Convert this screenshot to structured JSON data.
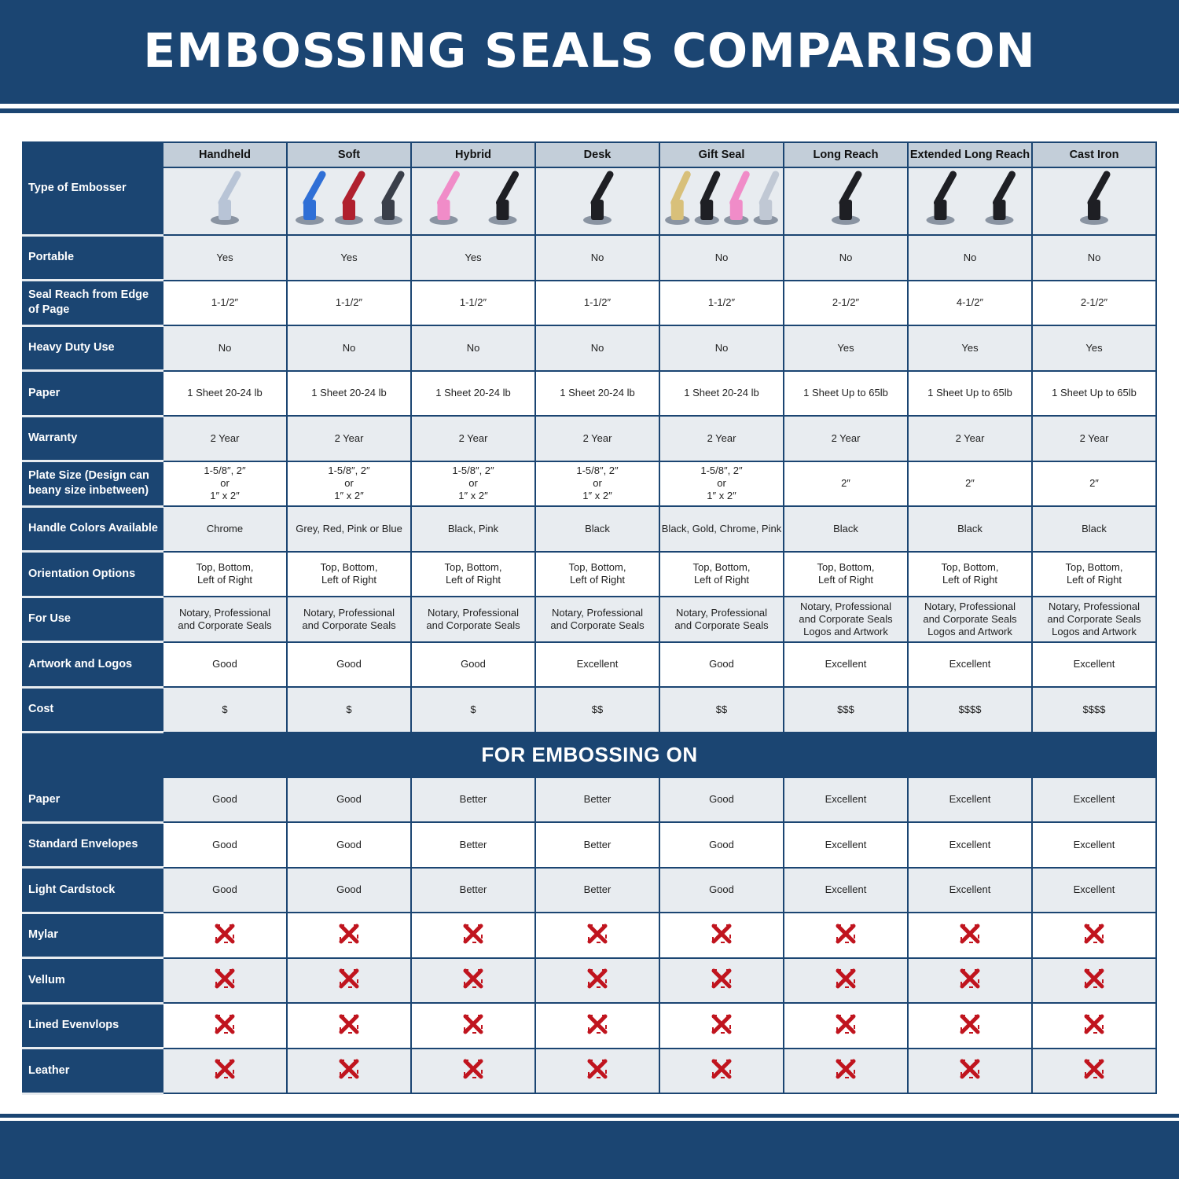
{
  "title": "EMBOSSING SEALS COMPARISON",
  "colors": {
    "brand": "#1b4572",
    "row_alt": "#e8ecf0",
    "header_cell": "#c3ced9",
    "cross": "#c0141e"
  },
  "type_label": "Type of Embosser",
  "columns": [
    {
      "name": "Handheld",
      "image": "chrome-handheld-embosser",
      "colors": [
        "#b8c4d6"
      ]
    },
    {
      "name": "Soft",
      "image": "soft-embossers-blue-red-grey",
      "colors": [
        "#2f6fd6",
        "#b0202e",
        "#3a3f4a"
      ]
    },
    {
      "name": "Hybrid",
      "image": "hybrid-embossers-pink-black",
      "colors": [
        "#f08cc8",
        "#1e1f24"
      ]
    },
    {
      "name": "Desk",
      "image": "desk-embosser-black",
      "colors": [
        "#1e1f24"
      ]
    },
    {
      "name": "Gift Seal",
      "image": "gift-seals-gold-black-pink-chrome",
      "colors": [
        "#d8c07a",
        "#1e1f24",
        "#f08cc8",
        "#c0c8d4"
      ]
    },
    {
      "name": "Long Reach",
      "image": "long-reach-embosser-black",
      "colors": [
        "#1e1f24"
      ]
    },
    {
      "name": "Extended Long Reach",
      "image": "extended-long-reach-embossers",
      "colors": [
        "#1e1f24",
        "#1e1f24"
      ]
    },
    {
      "name": "Cast Iron",
      "image": "cast-iron-embosser",
      "colors": [
        "#1e1f24"
      ]
    }
  ],
  "rows": [
    {
      "label": "Portable",
      "values": [
        "Yes",
        "Yes",
        "Yes",
        "No",
        "No",
        "No",
        "No",
        "No"
      ]
    },
    {
      "label": "Seal Reach from Edge of Page",
      "values": [
        "1-1/2″",
        "1-1/2″",
        "1-1/2″",
        "1-1/2″",
        "1-1/2″",
        "2-1/2″",
        "4-1/2″",
        "2-1/2″"
      ]
    },
    {
      "label": "Heavy Duty Use",
      "values": [
        "No",
        "No",
        "No",
        "No",
        "No",
        "Yes",
        "Yes",
        "Yes"
      ]
    },
    {
      "label": "Paper",
      "values": [
        "1 Sheet 20-24 lb",
        "1 Sheet 20-24 lb",
        "1 Sheet 20-24 lb",
        "1 Sheet 20-24 lb",
        "1 Sheet 20-24 lb",
        "1 Sheet Up to 65lb",
        "1 Sheet Up to 65lb",
        "1 Sheet Up to 65lb"
      ]
    },
    {
      "label": "Warranty",
      "values": [
        "2 Year",
        "2 Year",
        "2 Year",
        "2 Year",
        "2 Year",
        "2 Year",
        "2 Year",
        "2 Year"
      ]
    },
    {
      "label": "Plate Size (Design can beany size inbetween)",
      "values": [
        "1-5/8″, 2″\nor\n1″ x 2″",
        "1-5/8″, 2″\nor\n1″ x 2″",
        "1-5/8″, 2″\nor\n1″ x 2″",
        "1-5/8″, 2″\nor\n1″ x 2″",
        "1-5/8″, 2″\nor\n1″ x 2″",
        "2″",
        "2″",
        "2″"
      ]
    },
    {
      "label": "Handle Colors Available",
      "values": [
        "Chrome",
        "Grey, Red, Pink or Blue",
        "Black, Pink",
        "Black",
        "Black, Gold, Chrome, Pink",
        "Black",
        "Black",
        "Black"
      ]
    },
    {
      "label": "Orientation Options",
      "values": [
        "Top, Bottom,\nLeft of Right",
        "Top, Bottom,\nLeft of Right",
        "Top, Bottom,\nLeft of Right",
        "Top, Bottom,\nLeft of Right",
        "Top, Bottom,\nLeft of Right",
        "Top, Bottom,\nLeft of Right",
        "Top, Bottom,\nLeft of Right",
        "Top, Bottom,\nLeft of Right"
      ]
    },
    {
      "label": "For Use",
      "values": [
        "Notary, Professional\nand Corporate Seals",
        "Notary, Professional\nand Corporate Seals",
        "Notary, Professional\nand Corporate Seals",
        "Notary, Professional\nand Corporate Seals",
        "Notary, Professional\nand Corporate Seals",
        "Notary, Professional\nand Corporate Seals\nLogos and Artwork",
        "Notary, Professional\nand Corporate Seals\nLogos and Artwork",
        "Notary, Professional\nand Corporate Seals\nLogos and Artwork"
      ]
    },
    {
      "label": "Artwork and Logos",
      "values": [
        "Good",
        "Good",
        "Good",
        "Excellent",
        "Good",
        "Excellent",
        "Excellent",
        "Excellent"
      ]
    },
    {
      "label": "Cost",
      "values": [
        "$",
        "$",
        "$",
        "$$",
        "$$",
        "$$$",
        "$$$$",
        "$$$$"
      ]
    }
  ],
  "section_title": "FOR EMBOSSING ON",
  "section_rows": [
    {
      "label": "Paper",
      "values": [
        "Good",
        "Good",
        "Better",
        "Better",
        "Good",
        "Excellent",
        "Excellent",
        "Excellent"
      ]
    },
    {
      "label": "Standard Envelopes",
      "values": [
        "Good",
        "Good",
        "Better",
        "Better",
        "Good",
        "Excellent",
        "Excellent",
        "Excellent"
      ]
    },
    {
      "label": "Light Cardstock",
      "values": [
        "Good",
        "Good",
        "Better",
        "Better",
        "Good",
        "Excellent",
        "Excellent",
        "Excellent"
      ]
    },
    {
      "label": "Mylar",
      "icon": "red-x-icon",
      "values": [
        false,
        false,
        false,
        false,
        false,
        false,
        false,
        false
      ]
    },
    {
      "label": "Vellum",
      "icon": "red-x-icon",
      "values": [
        false,
        false,
        false,
        false,
        false,
        false,
        false,
        false
      ]
    },
    {
      "label": "Lined Evenvlops",
      "icon": "red-x-icon",
      "values": [
        false,
        false,
        false,
        false,
        false,
        false,
        false,
        false
      ]
    },
    {
      "label": "Leather",
      "icon": "red-x-icon",
      "values": [
        false,
        false,
        false,
        false,
        false,
        false,
        false,
        false
      ]
    }
  ]
}
